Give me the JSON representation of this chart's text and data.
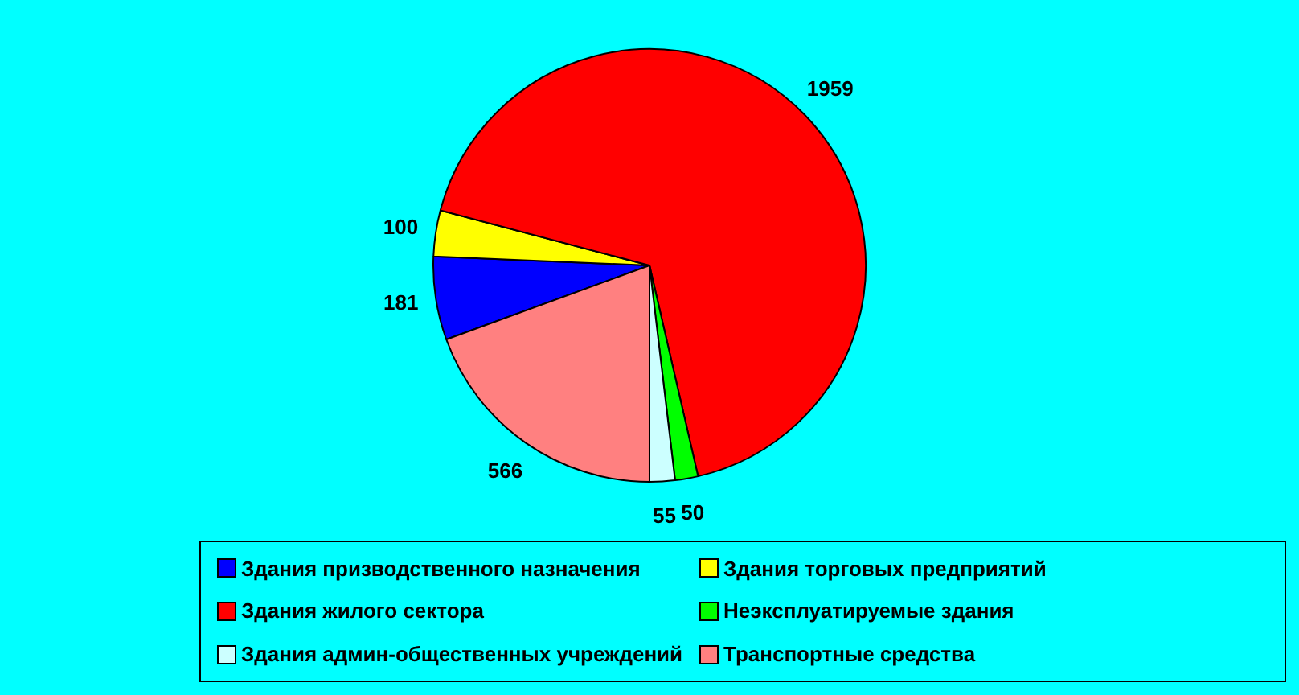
{
  "chart_data": {
    "type": "pie",
    "categories": [
      "Здания призводственного назначения",
      "Здания торговых предприятий",
      "Здания жилого сектора",
      "Неэксплуатируемые здания",
      "Здания админ-общественных учреждений",
      "Транспортные средства"
    ],
    "values": [
      181,
      100,
      1959,
      50,
      55,
      566
    ],
    "colors": [
      "#0000ff",
      "#ffff00",
      "#ff0000",
      "#00ff00",
      "#ccffff",
      "#ff8080"
    ],
    "data_labels": true,
    "legend": "bottom"
  }
}
